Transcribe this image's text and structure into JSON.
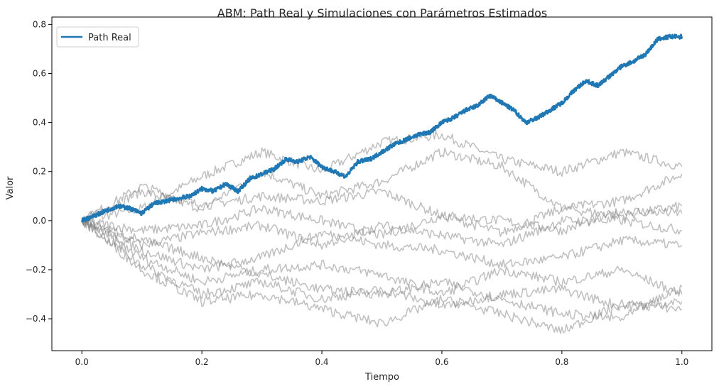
{
  "chart_data": {
    "type": "line",
    "title": "ABM: Path Real y Simulaciones con Parámetros Estimados",
    "xlabel": "Tiempo",
    "ylabel": "Valor",
    "xlim": [
      -0.05,
      1.05
    ],
    "ylim": [
      -0.53,
      0.83
    ],
    "xticks": [
      0.0,
      0.2,
      0.4,
      0.6,
      0.8,
      1.0
    ],
    "xtick_labels": [
      "0.0",
      "0.2",
      "0.4",
      "0.6",
      "0.8",
      "1.0"
    ],
    "yticks": [
      -0.4,
      -0.2,
      0.0,
      0.2,
      0.4,
      0.6,
      0.8
    ],
    "ytick_labels": [
      "−0.4",
      "−0.2",
      "0.0",
      "0.2",
      "0.4",
      "0.6",
      "0.8"
    ],
    "grid": false,
    "legend_position": "top-left",
    "legend": [
      "Path Real"
    ],
    "colors": {
      "real": "#1f77b4",
      "simulation": "#808080"
    },
    "series": [
      {
        "name": "Path Real",
        "x": [
          0,
          0.02,
          0.04,
          0.06,
          0.08,
          0.1,
          0.12,
          0.14,
          0.16,
          0.18,
          0.2,
          0.22,
          0.24,
          0.26,
          0.28,
          0.3,
          0.32,
          0.34,
          0.36,
          0.38,
          0.4,
          0.42,
          0.44,
          0.46,
          0.48,
          0.5,
          0.52,
          0.54,
          0.56,
          0.58,
          0.6,
          0.62,
          0.64,
          0.66,
          0.68,
          0.7,
          0.72,
          0.74,
          0.76,
          0.78,
          0.8,
          0.82,
          0.84,
          0.86,
          0.88,
          0.9,
          0.92,
          0.94,
          0.96,
          0.98,
          1.0
        ],
        "y": [
          0.0,
          0.02,
          0.04,
          0.06,
          0.05,
          0.03,
          0.07,
          0.08,
          0.09,
          0.1,
          0.13,
          0.12,
          0.15,
          0.12,
          0.17,
          0.19,
          0.21,
          0.25,
          0.24,
          0.26,
          0.22,
          0.2,
          0.18,
          0.24,
          0.25,
          0.28,
          0.31,
          0.33,
          0.35,
          0.36,
          0.4,
          0.42,
          0.45,
          0.47,
          0.51,
          0.48,
          0.45,
          0.4,
          0.42,
          0.45,
          0.48,
          0.53,
          0.57,
          0.55,
          0.59,
          0.63,
          0.65,
          0.68,
          0.74,
          0.75,
          0.75
        ]
      },
      {
        "x": [
          0,
          0.1,
          0.2,
          0.3,
          0.4,
          0.5,
          0.6,
          0.7,
          0.8,
          0.9,
          1.0
        ],
        "y": [
          0.0,
          0.05,
          0.18,
          0.28,
          0.2,
          0.32,
          0.35,
          0.25,
          0.2,
          0.28,
          0.22
        ]
      },
      {
        "x": [
          0,
          0.1,
          0.2,
          0.3,
          0.4,
          0.5,
          0.6,
          0.7,
          0.8,
          0.9,
          1.0
        ],
        "y": [
          0.0,
          0.12,
          0.05,
          0.2,
          0.1,
          0.16,
          0.28,
          0.22,
          0.05,
          0.08,
          0.19
        ]
      },
      {
        "x": [
          0,
          0.1,
          0.2,
          0.3,
          0.4,
          0.5,
          0.6,
          0.7,
          0.8,
          0.9,
          1.0
        ],
        "y": [
          0.0,
          0.14,
          0.06,
          0.1,
          0.08,
          0.12,
          0.02,
          -0.05,
          0.05,
          0.02,
          0.06
        ]
      },
      {
        "x": [
          0,
          0.1,
          0.2,
          0.3,
          0.4,
          0.5,
          0.6,
          0.7,
          0.8,
          0.9,
          1.0
        ],
        "y": [
          0.0,
          -0.04,
          -0.02,
          0.05,
          0.0,
          -0.06,
          0.02,
          0.0,
          -0.04,
          0.04,
          0.03
        ]
      },
      {
        "x": [
          0,
          0.1,
          0.2,
          0.3,
          0.4,
          0.5,
          0.6,
          0.7,
          0.8,
          0.9,
          1.0
        ],
        "y": [
          0.0,
          -0.1,
          -0.05,
          -0.02,
          -0.1,
          -0.02,
          -0.06,
          -0.1,
          0.0,
          0.0,
          -0.04
        ]
      },
      {
        "x": [
          0,
          0.1,
          0.2,
          0.3,
          0.4,
          0.5,
          0.6,
          0.7,
          0.8,
          0.9,
          1.0
        ],
        "y": [
          0.0,
          -0.12,
          -0.2,
          -0.15,
          -0.05,
          -0.1,
          -0.12,
          -0.18,
          -0.15,
          -0.08,
          -0.1
        ]
      },
      {
        "x": [
          0,
          0.1,
          0.2,
          0.3,
          0.4,
          0.5,
          0.6,
          0.7,
          0.8,
          0.9,
          1.0
        ],
        "y": [
          0.0,
          -0.15,
          -0.25,
          -0.2,
          -0.18,
          -0.22,
          -0.3,
          -0.2,
          -0.25,
          -0.2,
          -0.3
        ]
      },
      {
        "x": [
          0,
          0.1,
          0.2,
          0.3,
          0.4,
          0.5,
          0.6,
          0.7,
          0.8,
          0.9,
          1.0
        ],
        "y": [
          0.0,
          -0.18,
          -0.3,
          -0.25,
          -0.32,
          -0.28,
          -0.35,
          -0.3,
          -0.28,
          -0.35,
          -0.33
        ]
      },
      {
        "x": [
          0,
          0.1,
          0.2,
          0.3,
          0.4,
          0.5,
          0.6,
          0.7,
          0.8,
          0.9,
          1.0
        ],
        "y": [
          0.0,
          -0.2,
          -0.33,
          -0.3,
          -0.36,
          -0.42,
          -0.32,
          -0.38,
          -0.45,
          -0.34,
          -0.36
        ]
      },
      {
        "x": [
          0,
          0.1,
          0.2,
          0.3,
          0.4,
          0.5,
          0.6,
          0.7,
          0.8,
          0.9,
          1.0
        ],
        "y": [
          0.0,
          -0.08,
          -0.15,
          -0.22,
          -0.28,
          -0.3,
          -0.25,
          -0.32,
          -0.38,
          -0.4,
          -0.27
        ]
      }
    ]
  }
}
